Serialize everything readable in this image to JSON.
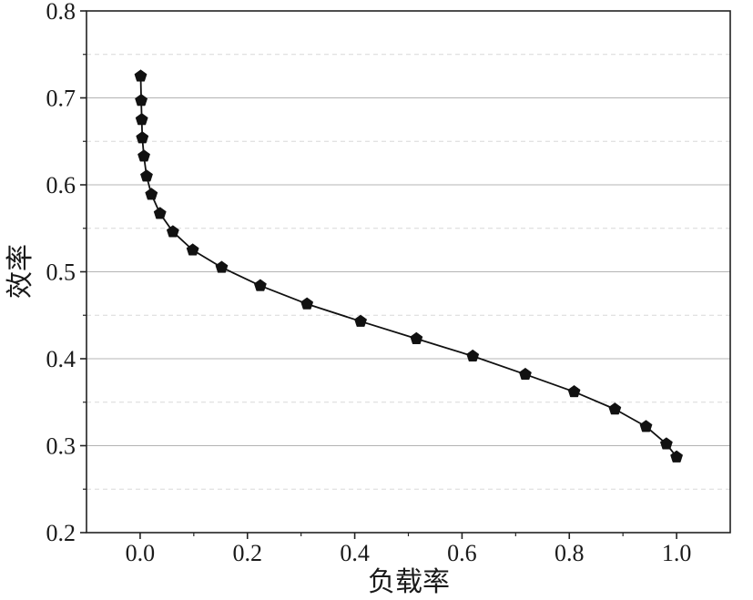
{
  "chart_data": {
    "type": "line",
    "title": "",
    "xlabel": "负载率",
    "ylabel": "效率",
    "xlim": [
      -0.1,
      1.1
    ],
    "ylim": [
      0.2,
      0.8
    ],
    "xticks": [
      0.0,
      0.2,
      0.4,
      0.6,
      0.8,
      1.0
    ],
    "xtick_labels": [
      "0.0",
      "0.2",
      "0.4",
      "0.6",
      "0.8",
      "1.0"
    ],
    "yticks": [
      0.2,
      0.3,
      0.4,
      0.5,
      0.6,
      0.7,
      0.8
    ],
    "ytick_labels": [
      "0.2",
      "0.3",
      "0.4",
      "0.5",
      "0.6",
      "0.7",
      "0.8"
    ],
    "grid": "horizontal major and minor",
    "legend": "none",
    "series": [
      {
        "marker": "pentagon",
        "color": "#111111",
        "x": [
          0.001,
          0.002,
          0.003,
          0.004,
          0.007,
          0.012,
          0.021,
          0.037,
          0.061,
          0.098,
          0.152,
          0.224,
          0.311,
          0.411,
          0.515,
          0.62,
          0.718,
          0.809,
          0.885,
          0.943,
          0.981,
          1.0
        ],
        "y": [
          0.725,
          0.697,
          0.675,
          0.654,
          0.633,
          0.61,
          0.589,
          0.567,
          0.546,
          0.525,
          0.505,
          0.484,
          0.463,
          0.443,
          0.423,
          0.403,
          0.382,
          0.362,
          0.342,
          0.322,
          0.302,
          0.287
        ]
      }
    ]
  }
}
